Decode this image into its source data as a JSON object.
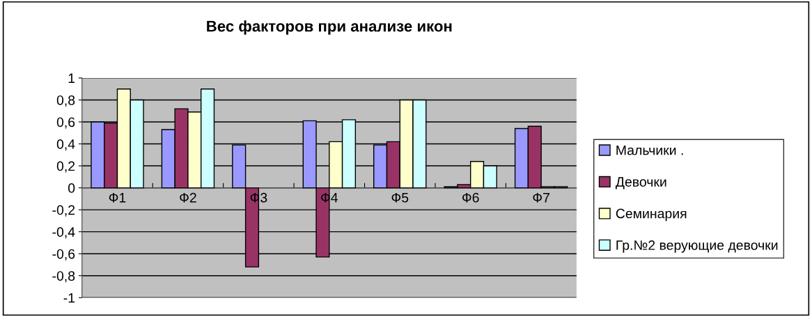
{
  "chart_data": {
    "type": "bar",
    "title": "Вес факторов при анализе икон",
    "categories": [
      "Ф1",
      "Ф2",
      "Ф3",
      "Ф4",
      "Ф5",
      "Ф6",
      "Ф7"
    ],
    "series": [
      {
        "name": "Мальчики .",
        "color": "#9999ff",
        "values": [
          0.6,
          0.53,
          0.39,
          0.61,
          0.39,
          0.01,
          0.54
        ]
      },
      {
        "name": "Девочки",
        "color": "#993366",
        "values": [
          0.59,
          0.72,
          -0.72,
          -0.63,
          0.42,
          0.03,
          0.56
        ]
      },
      {
        "name": "Семинария",
        "color": "#ffffcc",
        "values": [
          0.9,
          0.69,
          null,
          0.42,
          0.8,
          0.24,
          0.01
        ]
      },
      {
        "name": "Гр.№2 верующие девочки",
        "color": "#ccffff",
        "values": [
          0.8,
          0.9,
          null,
          0.62,
          0.8,
          0.2,
          0.01
        ]
      }
    ],
    "ylim": [
      -1,
      1
    ],
    "yticks": [
      {
        "value": -1,
        "label": "-1"
      },
      {
        "value": -0.8,
        "label": "-0,8"
      },
      {
        "value": -0.6,
        "label": "-0,6"
      },
      {
        "value": -0.4,
        "label": "-0,4"
      },
      {
        "value": -0.2,
        "label": "-0,2"
      },
      {
        "value": 0,
        "label": "0"
      },
      {
        "value": 0.2,
        "label": "0,2"
      },
      {
        "value": 0.4,
        "label": "0,4"
      },
      {
        "value": 0.6,
        "label": "0,6"
      },
      {
        "value": 0.8,
        "label": "0,8"
      },
      {
        "value": 1,
        "label": "1"
      }
    ],
    "grid": "y",
    "legend": "right"
  }
}
